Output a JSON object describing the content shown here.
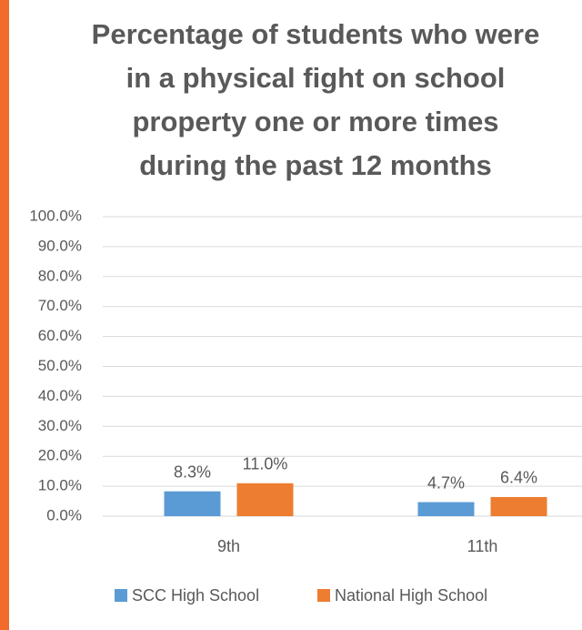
{
  "chart_data": {
    "type": "bar",
    "title": [
      "Percentage of students who were",
      "in a physical fight on school",
      "property one or more times",
      "during the past 12 months"
    ],
    "categories": [
      "9th",
      "11th"
    ],
    "series": [
      {
        "name": "SCC High School",
        "color": "#5b9bd5",
        "values": [
          8.3,
          4.7
        ],
        "value_labels": [
          "8.3%",
          "4.7%"
        ]
      },
      {
        "name": "National High School",
        "color": "#ed7d31",
        "values": [
          11.0,
          6.4
        ],
        "value_labels": [
          "11.0%",
          "6.4%"
        ]
      }
    ],
    "ylim": [
      0,
      100
    ],
    "yticks": [
      {
        "value": 0,
        "label": "0.0%"
      },
      {
        "value": 10,
        "label": "10.0%"
      },
      {
        "value": 20,
        "label": "20.0%"
      },
      {
        "value": 30,
        "label": "30.0%"
      },
      {
        "value": 40,
        "label": "40.0%"
      },
      {
        "value": 50,
        "label": "50.0%"
      },
      {
        "value": 60,
        "label": "60.0%"
      },
      {
        "value": 70,
        "label": "70.0%"
      },
      {
        "value": 80,
        "label": "80.0%"
      },
      {
        "value": 90,
        "label": "90.0%"
      },
      {
        "value": 100,
        "label": "100.0%"
      }
    ],
    "grid": true
  }
}
